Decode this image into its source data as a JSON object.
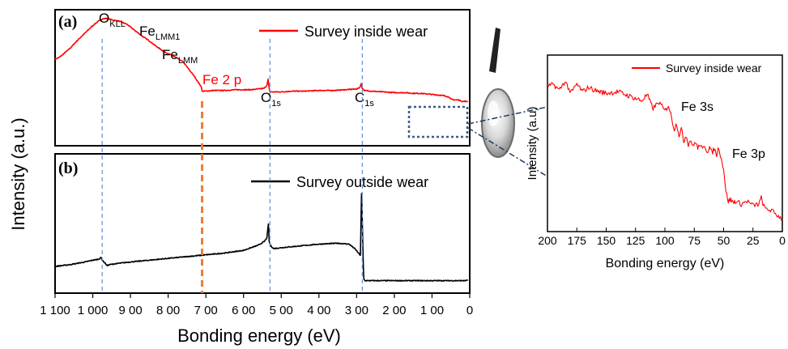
{
  "figure": {
    "ylabel": "Intensity (a.u.)",
    "xlabel": "Bonding energy (eV)"
  },
  "chart_data": [
    {
      "type": "line",
      "panel_label": "(a)",
      "legend": "Survey inside wear",
      "line_color": "#ff0000",
      "xlim": [
        1100,
        0
      ],
      "x_reversed": true,
      "series": [
        {
          "name": "Survey inside wear",
          "x": [
            1100,
            1090,
            1080,
            1060,
            1040,
            1020,
            1000,
            985,
            975,
            965,
            950,
            930,
            910,
            890,
            870,
            850,
            830,
            810,
            790,
            775,
            760,
            745,
            730,
            720,
            712,
            710,
            700,
            680,
            650,
            620,
            600,
            580,
            560,
            545,
            538,
            535,
            532,
            530,
            520,
            500,
            470,
            440,
            400,
            360,
            330,
            300,
            292,
            288,
            285,
            280,
            260,
            230,
            200,
            170,
            150,
            130,
            110,
            90,
            70,
            55,
            50,
            40,
            30,
            20,
            10,
            5
          ],
          "y": [
            0.3,
            0.32,
            0.36,
            0.45,
            0.56,
            0.66,
            0.76,
            0.82,
            0.85,
            0.86,
            0.84,
            0.82,
            0.78,
            0.7,
            0.62,
            0.55,
            0.47,
            0.4,
            0.35,
            0.31,
            0.26,
            0.16,
            0.06,
            -0.02,
            -0.08,
            -0.14,
            -0.14,
            -0.13,
            -0.13,
            -0.12,
            -0.12,
            -0.12,
            -0.11,
            -0.1,
            -0.06,
            0.02,
            -0.1,
            -0.15,
            -0.15,
            -0.15,
            -0.14,
            -0.14,
            -0.13,
            -0.13,
            -0.12,
            -0.11,
            -0.09,
            -0.04,
            -0.1,
            -0.13,
            -0.14,
            -0.15,
            -0.16,
            -0.16,
            -0.17,
            -0.17,
            -0.18,
            -0.19,
            -0.2,
            -0.22,
            -0.25,
            -0.26,
            -0.26,
            -0.28,
            -0.28,
            -0.28
          ]
        }
      ],
      "annotations": [
        {
          "main": "O",
          "sub": "KLL",
          "x": 975,
          "color": "#000000"
        },
        {
          "main": "Fe",
          "sub": "LMM1",
          "x": 860,
          "color": "#000000"
        },
        {
          "main": "Fe",
          "sub": "LMM",
          "x": 815,
          "color": "#000000"
        },
        {
          "main": "Fe 2 p",
          "sub": "",
          "x": 680,
          "color": "#ff0000"
        },
        {
          "main": "O",
          "sub": "1s",
          "x": 530,
          "color": "#000000"
        },
        {
          "main": "C",
          "sub": "1s",
          "x": 285,
          "color": "#000000"
        }
      ]
    },
    {
      "type": "line",
      "panel_label": "(b)",
      "legend": "Survey outside wear",
      "line_color": "#000000",
      "xlim": [
        1100,
        0
      ],
      "x_reversed": true,
      "xticks": [
        1100,
        1000,
        900,
        800,
        700,
        600,
        500,
        400,
        300,
        200,
        100,
        0
      ],
      "xtick_labels": [
        "1 100",
        "1 000",
        "9 00",
        "8 00",
        "7 00",
        "6 00",
        "5 00",
        "4 00",
        "3 00",
        "2 00",
        "1 00",
        "0"
      ],
      "series": [
        {
          "name": "Survey outside wear",
          "x": [
            1100,
            1060,
            1020,
            1000,
            985,
            978,
            975,
            968,
            962,
            955,
            940,
            900,
            850,
            800,
            750,
            700,
            650,
            600,
            560,
            545,
            538,
            534,
            532,
            528,
            520,
            500,
            450,
            400,
            350,
            320,
            305,
            295,
            290,
            287,
            285,
            283,
            281,
            278,
            260,
            200,
            150,
            100,
            50,
            20,
            10,
            5
          ],
          "y": [
            0.1,
            0.12,
            0.15,
            0.17,
            0.18,
            0.2,
            0.17,
            0.14,
            0.11,
            0.12,
            0.13,
            0.15,
            0.17,
            0.19,
            0.21,
            0.23,
            0.25,
            0.28,
            0.34,
            0.38,
            0.42,
            0.58,
            0.38,
            0.33,
            0.3,
            0.31,
            0.33,
            0.35,
            0.36,
            0.35,
            0.3,
            0.25,
            0.22,
            0.92,
            0.62,
            0.22,
            -0.04,
            -0.06,
            -0.06,
            -0.06,
            -0.06,
            -0.06,
            -0.06,
            -0.06,
            -0.06,
            -0.05
          ]
        }
      ]
    },
    {
      "type": "line",
      "panel_label": "",
      "legend": "Survey inside wear",
      "line_color": "#ff0000",
      "xlim": [
        200,
        0
      ],
      "x_reversed": true,
      "xticks": [
        200,
        175,
        150,
        125,
        100,
        75,
        50,
        25,
        0
      ],
      "xtick_labels": [
        "200",
        "175",
        "150",
        "125",
        "100",
        "75",
        "50",
        "25",
        "0"
      ],
      "ylabel": "Intensity (a.u)",
      "xlabel": "Bonding energy (eV)",
      "series": [
        {
          "name": "Survey inside wear",
          "x": [
            200,
            195,
            190,
            185,
            180,
            175,
            170,
            165,
            160,
            150,
            140,
            130,
            120,
            115,
            112,
            110,
            105,
            100,
            97,
            95,
            92,
            90,
            88,
            86,
            84,
            82,
            80,
            78,
            76,
            74,
            72,
            70,
            68,
            66,
            64,
            62,
            60,
            58,
            56,
            54,
            52,
            50,
            48,
            46,
            44,
            42,
            40,
            35,
            30,
            25,
            20,
            18,
            15,
            10,
            5,
            0
          ],
          "y": [
            0.78,
            0.8,
            0.76,
            0.82,
            0.74,
            0.8,
            0.75,
            0.78,
            0.76,
            0.74,
            0.75,
            0.72,
            0.69,
            0.73,
            0.67,
            0.64,
            0.68,
            0.62,
            0.66,
            0.6,
            0.5,
            0.54,
            0.46,
            0.5,
            0.42,
            0.46,
            0.4,
            0.43,
            0.38,
            0.42,
            0.37,
            0.4,
            0.36,
            0.39,
            0.35,
            0.38,
            0.34,
            0.37,
            0.33,
            0.38,
            0.3,
            0.24,
            0.08,
            0.02,
            0.03,
            0.01,
            0.02,
            0.0,
            0.02,
            -0.01,
            0.0,
            0.04,
            -0.03,
            -0.04,
            -0.07,
            -0.1
          ]
        }
      ],
      "annotations": [
        {
          "main": "Fe 3s",
          "sub": "",
          "x": 80,
          "color": "#000000"
        },
        {
          "main": "Fe 3p",
          "sub": "",
          "x": 45,
          "color": "#000000"
        }
      ]
    }
  ]
}
